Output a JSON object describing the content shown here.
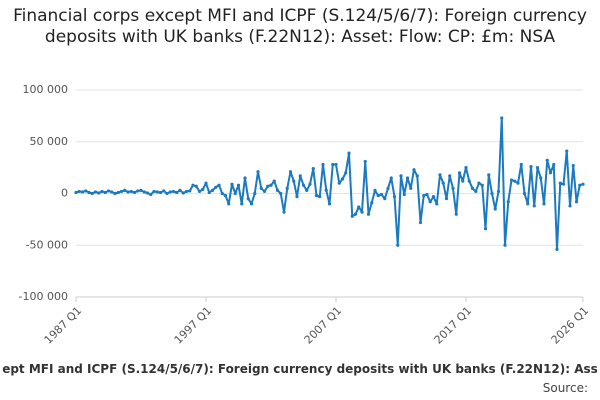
{
  "chart_data": {
    "type": "line",
    "title": "Financial corps except MFI and ICPF (S.124/5/6/7): Foreign currency deposits with UK banks (F.22N12): Asset: Flow: CP: £m: NSA",
    "footer": "ept MFI and ICPF (S.124/5/6/7): Foreign currency deposits with UK banks (F.22N12): Ass",
    "source": "Source:",
    "color": "#1b7ac0",
    "grid": true,
    "ylim": [
      -100000,
      100000
    ],
    "yticks": [
      {
        "value": -100000,
        "label": "-100 000"
      },
      {
        "value": -50000,
        "label": "-50 000"
      },
      0,
      {
        "value": 50000,
        "label": "50 000"
      },
      {
        "value": 100000,
        "label": "100 000"
      }
    ],
    "categories": [
      "1987 Q1",
      null,
      null,
      null,
      null,
      null,
      null,
      null,
      null,
      null,
      null,
      null,
      null,
      null,
      null,
      null,
      null,
      null,
      null,
      null,
      null,
      null,
      null,
      null,
      null,
      null,
      null,
      null,
      null,
      null,
      null,
      null,
      null,
      null,
      null,
      null,
      null,
      null,
      null,
      null,
      "1997 Q1",
      null,
      null,
      null,
      null,
      null,
      null,
      null,
      null,
      null,
      null,
      null,
      null,
      null,
      null,
      null,
      null,
      null,
      null,
      null,
      null,
      null,
      null,
      null,
      null,
      null,
      null,
      null,
      null,
      null,
      null,
      null,
      null,
      null,
      null,
      null,
      null,
      null,
      null,
      null,
      "2007 Q1",
      null,
      null,
      null,
      null,
      null,
      null,
      null,
      null,
      null,
      null,
      null,
      null,
      null,
      null,
      null,
      null,
      null,
      null,
      null,
      null,
      null,
      null,
      null,
      null,
      null,
      null,
      null,
      null,
      null,
      null,
      null,
      null,
      null,
      null,
      null,
      null,
      null,
      null,
      null,
      "2017 Q1",
      null,
      null,
      null,
      null,
      null,
      null,
      null,
      null,
      null,
      null,
      null,
      null,
      null,
      null,
      null,
      null,
      null,
      null,
      null,
      null,
      null,
      null,
      null,
      null,
      null,
      null,
      null,
      null,
      null,
      null,
      null,
      null,
      null,
      null,
      null,
      "2026 Q1"
    ],
    "values": [
      1000,
      2000,
      1500,
      2500,
      1000,
      0,
      1500,
      500,
      2000,
      1000,
      2500,
      1500,
      0,
      1000,
      2000,
      3000,
      1500,
      2000,
      1000,
      2500,
      3000,
      1500,
      500,
      -1000,
      2000,
      1500,
      1000,
      2500,
      0,
      1500,
      2000,
      1000,
      3000,
      500,
      2000,
      2500,
      8000,
      7000,
      2000,
      4000,
      10000,
      1000,
      3000,
      6000,
      8000,
      0,
      -2000,
      -10000,
      9000,
      0,
      8000,
      -10000,
      15000,
      -5000,
      -10000,
      0,
      21000,
      5000,
      2000,
      7000,
      8000,
      12000,
      3000,
      0,
      -18000,
      5000,
      21000,
      12000,
      -3000,
      17000,
      8000,
      3000,
      9000,
      24000,
      -2000,
      -3000,
      28000,
      3000,
      -10000,
      28000,
      28000,
      10000,
      14000,
      20000,
      39000,
      -22000,
      -20000,
      -13000,
      -18000,
      31000,
      -20000,
      -9000,
      3000,
      -2000,
      -1000,
      -5000,
      5000,
      15000,
      -3000,
      -50000,
      17000,
      -1000,
      15000,
      5000,
      23000,
      17000,
      -28000,
      -2000,
      -1000,
      -8000,
      -3000,
      -10000,
      18000,
      10000,
      -5000,
      17000,
      5000,
      -20000,
      20000,
      12000,
      25000,
      12000,
      5000,
      2000,
      10000,
      8000,
      -34000,
      18000,
      0,
      -15000,
      2000,
      73000,
      -50000,
      -8000,
      13000,
      12000,
      10000,
      28000,
      0,
      -10000,
      26000,
      -12000,
      25000,
      15000,
      -10000,
      32000,
      20000,
      28000,
      -54000,
      10000,
      9000,
      41000,
      -12000,
      27000,
      -8000,
      8000,
      9000
    ]
  }
}
